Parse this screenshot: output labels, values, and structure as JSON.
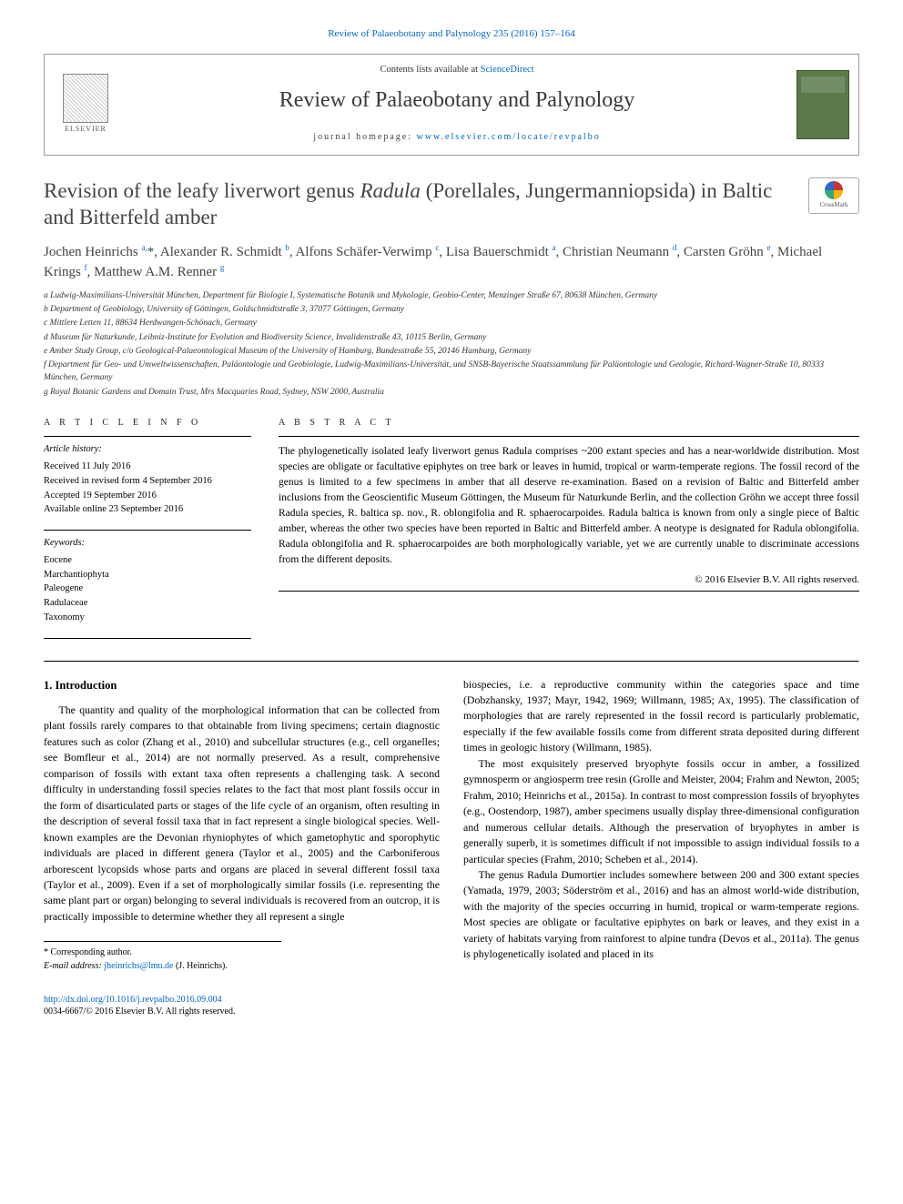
{
  "top_citation": "Review of Palaeobotany and Palynology 235 (2016) 157–164",
  "header": {
    "contents_prefix": "Contents lists available at ",
    "contents_link": "ScienceDirect",
    "journal_name": "Review of Palaeobotany and Palynology",
    "homepage_label": "journal homepage: ",
    "homepage_url": "www.elsevier.com/locate/revpalbo",
    "publisher": "ELSEVIER"
  },
  "crossmark_label": "CrossMark",
  "title_part1": "Revision of the leafy liverwort genus ",
  "title_ital": "Radula",
  "title_part2": " (Porellales, Jungermanniopsida) in Baltic and Bitterfeld amber",
  "authors_html": "Jochen Heinrichs <sup>a,</sup>*, Alexander R. Schmidt <sup>b</sup>, Alfons Schäfer-Verwimp <sup>c</sup>, Lisa Bauerschmidt <sup>a</sup>, Christian Neumann <sup>d</sup>, Carsten Gröhn <sup>e</sup>, Michael Krings <sup>f</sup>, Matthew A.M. Renner <sup>g</sup>",
  "affiliations": [
    "a  Ludwig-Maximilians-Universität München, Department für Biologie I, Systematische Botanik und Mykologie, Geobio-Center, Menzinger Straße 67, 80638 München, Germany",
    "b  Department of Geobiology, University of Göttingen, Goldschmidtstraße 3, 37077 Göttingen, Germany",
    "c  Mittlere Letten 11, 88634 Herdwangen-Schönach, Germany",
    "d  Museum für Naturkunde, Leibniz-Institute for Evolution and Biodiversity Science, Invalidenstraße 43, 10115 Berlin, Germany",
    "e  Amber Study Group, c/o Geological-Palaeontological Museum of the University of Hamburg, Bundesstraße 55, 20146 Hamburg, Germany",
    "f  Department für Geo- und Umweltwissenschaften, Paläontologie und Geobiologie, Ludwig-Maximilians-Universität, und SNSB-Bayerische Staatssammlung für Paläontologie und Geologie, Richard-Wagner-Straße 10, 80333 München, Germany",
    "g  Royal Botanic Gardens and Domain Trust, Mrs Macquaries Road, Sydney, NSW 2000, Australia"
  ],
  "info": {
    "heading": "A R T I C L E   I N F O",
    "history_label": "Article history:",
    "history": [
      "Received 11 July 2016",
      "Received in revised form 4 September 2016",
      "Accepted 19 September 2016",
      "Available online 23 September 2016"
    ],
    "keywords_label": "Keywords:",
    "keywords": [
      "Eocene",
      "Marchantiophyta",
      "Paleogene",
      "Radulaceae",
      "Taxonomy"
    ]
  },
  "abstract": {
    "heading": "A B S T R A C T",
    "text": "The phylogenetically isolated leafy liverwort genus Radula comprises ~200 extant species and has a near-worldwide distribution. Most species are obligate or facultative epiphytes on tree bark or leaves in humid, tropical or warm-temperate regions. The fossil record of the genus is limited to a few specimens in amber that all deserve re-examination. Based on a revision of Baltic and Bitterfeld amber inclusions from the Geoscientific Museum Göttingen, the Museum für Naturkunde Berlin, and the collection Gröhn we accept three fossil Radula species, R. baltica sp. nov., R. oblongifolia and R. sphaerocarpoides. Radula baltica is known from only a single piece of Baltic amber, whereas the other two species have been reported in Baltic and Bitterfeld amber. A neotype is designated for Radula oblongifolia. Radula oblongifolia and R. sphaerocarpoides are both morphologically variable, yet we are currently unable to discriminate accessions from the different deposits.",
    "copyright": "© 2016 Elsevier B.V. All rights reserved."
  },
  "body": {
    "section_heading": "1. Introduction",
    "p1": "The quantity and quality of the morphological information that can be collected from plant fossils rarely compares to that obtainable from living specimens; certain diagnostic features such as color (Zhang et al., 2010) and subcellular structures (e.g., cell organelles; see Bomfleur et al., 2014) are not normally preserved. As a result, comprehensive comparison of fossils with extant taxa often represents a challenging task. A second difficulty in understanding fossil species relates to the fact that most plant fossils occur in the form of disarticulated parts or stages of the life cycle of an organism, often resulting in the description of several fossil taxa that in fact represent a single biological species. Well-known examples are the Devonian rhyniophytes of which gametophytic and sporophytic individuals are placed in different genera (Taylor et al., 2005) and the Carboniferous arborescent lycopsids whose parts and organs are placed in several different fossil taxa (Taylor et al., 2009). Even if a set of morphologically similar fossils (i.e. representing the same plant part or organ) belonging to several individuals is recovered from an outcrop, it is practically impossible to determine whether they all represent a single",
    "p2": "biospecies, i.e. a reproductive community within the categories space and time (Dobzhansky, 1937; Mayr, 1942, 1969; Willmann, 1985; Ax, 1995). The classification of morphologies that are rarely represented in the fossil record is particularly problematic, especially if the few available fossils come from different strata deposited during different times in geologic history (Willmann, 1985).",
    "p3": "The most exquisitely preserved bryophyte fossils occur in amber, a fossilized gymnosperm or angiosperm tree resin (Grolle and Meister, 2004; Frahm and Newton, 2005; Frahm, 2010; Heinrichs et al., 2015a). In contrast to most compression fossils of bryophytes (e.g., Oostendorp, 1987), amber specimens usually display three-dimensional configuration and numerous cellular details. Although the preservation of bryophytes in amber is generally superb, it is sometimes difficult if not impossible to assign individual fossils to a particular species (Frahm, 2010; Scheben et al., 2014).",
    "p4": "The genus Radula Dumortier includes somewhere between 200 and 300 extant species (Yamada, 1979, 2003; Söderström et al., 2016) and has an almost world-wide distribution, with the majority of the species occurring in humid, tropical or warm-temperate regions. Most species are obligate or facultative epiphytes on bark or leaves, and they exist in a variety of habitats varying from rainforest to alpine tundra (Devos et al., 2011a). The genus is phylogenetically isolated and placed in its"
  },
  "corr": {
    "star": "* Corresponding author.",
    "email_label": "E-mail address: ",
    "email": "jheinrichs@lmu.de",
    "email_suffix": " (J. Heinrichs)."
  },
  "footer": {
    "doi": "http://dx.doi.org/10.1016/j.revpalbo.2016.09.004",
    "issn_line": "0034-6667/© 2016 Elsevier B.V. All rights reserved."
  }
}
